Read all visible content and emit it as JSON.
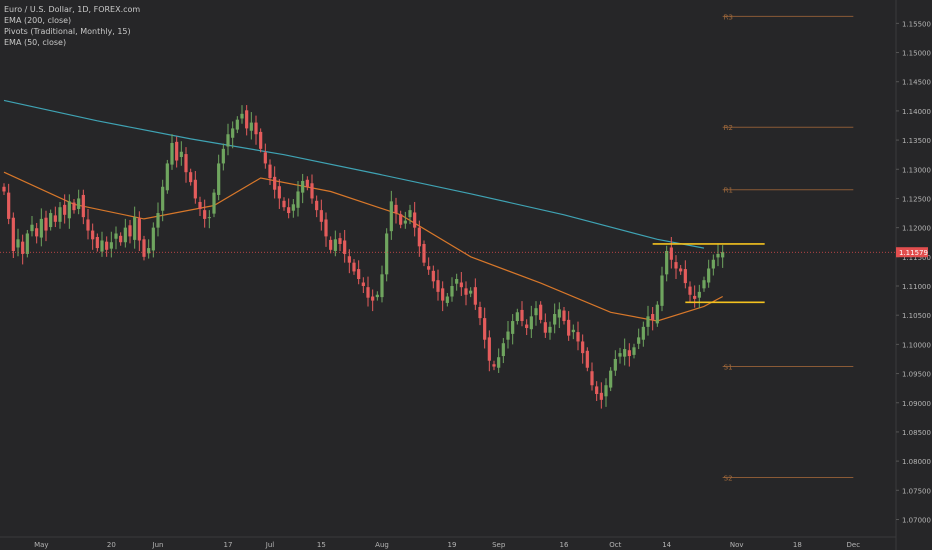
{
  "legend": {
    "symbol": "Euro / U.S. Dollar, 1D, FOREX.com",
    "ema200": "EMA (200, close)",
    "pivots": "Pivots (Traditional, Monthly, 15)",
    "ema50": "EMA (50, close)"
  },
  "colors": {
    "background": "#262628",
    "up": "#6fa55f",
    "down": "#e45c5c",
    "ema200": "#3fa3b4",
    "ema50": "#d7772a",
    "pivot": "#8a5a36",
    "pivot_text": "#a06a3c",
    "annotation": "#f4c21f",
    "price_line": "#e24e4e",
    "axis_text": "#b4b4b4"
  },
  "chart_data": {
    "type": "candlestick",
    "ylim": [
      1.067,
      1.159
    ],
    "y_ticks": [
      "1.15500",
      "1.15000",
      "1.14500",
      "1.14000",
      "1.13500",
      "1.13000",
      "1.12500",
      "1.12000",
      "1.11500",
      "1.11000",
      "1.10500",
      "1.10000",
      "1.09500",
      "1.09000",
      "1.08500",
      "1.08000",
      "1.07500",
      "1.07000"
    ],
    "x_ticks": [
      {
        "label": "May",
        "i": 8
      },
      {
        "label": "20",
        "i": 23
      },
      {
        "label": "Jun",
        "i": 33
      },
      {
        "label": "17",
        "i": 48
      },
      {
        "label": "Jul",
        "i": 57
      },
      {
        "label": "15",
        "i": 68
      },
      {
        "label": "Aug",
        "i": 81
      },
      {
        "label": "19",
        "i": 96
      },
      {
        "label": "Sep",
        "i": 106
      },
      {
        "label": "16",
        "i": 120
      },
      {
        "label": "Oct",
        "i": 131
      },
      {
        "label": "14",
        "i": 142
      },
      {
        "label": "Nov",
        "i": 157
      },
      {
        "label": "18",
        "i": 170
      },
      {
        "label": "Dec",
        "i": 182
      }
    ],
    "x_total": 192,
    "last_price": "1.11579",
    "last_price_value": 1.11579,
    "pivot_levels": [
      {
        "name": "R3",
        "value": 1.1562
      },
      {
        "name": "R2",
        "value": 1.1372
      },
      {
        "name": "R1",
        "value": 1.1265
      },
      {
        "name": "S1",
        "value": 1.0962
      },
      {
        "name": "S2",
        "value": 1.0772
      }
    ],
    "pivot_start_i": 154,
    "pivot_end_i": 182,
    "annotation_lines": [
      {
        "value": 1.1172,
        "i_start": 139,
        "i_end": 163
      },
      {
        "value": 1.1072,
        "i_start": 146,
        "i_end": 163
      }
    ],
    "closes": [
      1.1262,
      1.1215,
      1.116,
      1.118,
      1.1155,
      1.119,
      1.1205,
      1.1185,
      1.1215,
      1.1195,
      1.1225,
      1.121,
      1.1235,
      1.1222,
      1.1245,
      1.123,
      1.125,
      1.1218,
      1.1195,
      1.118,
      1.1165,
      1.1178,
      1.1162,
      1.1175,
      1.119,
      1.1175,
      1.12,
      1.1185,
      1.1218,
      1.1178,
      1.115,
      1.1165,
      1.12,
      1.1225,
      1.127,
      1.131,
      1.1345,
      1.1315,
      1.133,
      1.1295,
      1.1278,
      1.125,
      1.1232,
      1.1215,
      1.1218,
      1.126,
      1.131,
      1.1335,
      1.136,
      1.137,
      1.1385,
      1.1395,
      1.137,
      1.138,
      1.136,
      1.1335,
      1.131,
      1.1285,
      1.1265,
      1.125,
      1.1235,
      1.1225,
      1.124,
      1.1262,
      1.128,
      1.127,
      1.125,
      1.123,
      1.121,
      1.1185,
      1.1162,
      1.118,
      1.1172,
      1.1155,
      1.114,
      1.1125,
      1.1112,
      1.11,
      1.108,
      1.1075,
      1.1085,
      1.112,
      1.119,
      1.1245,
      1.1225,
      1.1205,
      1.1212,
      1.123,
      1.12,
      1.1168,
      1.114,
      1.1128,
      1.1108,
      1.109,
      1.1075,
      1.1082,
      1.11,
      1.1112,
      1.1098,
      1.1085,
      1.1092,
      1.1068,
      1.1045,
      1.1008,
      1.0972,
      1.0962,
      1.0978,
      1.1002,
      1.1022,
      1.104,
      1.1055,
      1.104,
      1.1028,
      1.1048,
      1.1062,
      1.1042,
      1.102,
      1.103,
      1.1052,
      1.106,
      1.104,
      1.1015,
      1.1025,
      1.1005,
      1.0985,
      1.096,
      1.093,
      1.0915,
      1.0905,
      1.093,
      1.0955,
      1.0975,
      1.0985,
      1.0992,
      1.098,
      1.0995,
      1.1012,
      1.103,
      1.1048,
      1.1042,
      1.1068,
      1.1118,
      1.116,
      1.1145,
      1.113,
      1.1125,
      1.1105,
      1.1085,
      1.1078,
      1.109,
      1.111,
      1.113,
      1.1145,
      1.1155,
      1.1158
    ],
    "ema200": [
      {
        "i": 0,
        "v": 1.1418
      },
      {
        "i": 20,
        "v": 1.1383
      },
      {
        "i": 40,
        "v": 1.1352
      },
      {
        "i": 60,
        "v": 1.1325
      },
      {
        "i": 80,
        "v": 1.1292
      },
      {
        "i": 100,
        "v": 1.1258
      },
      {
        "i": 120,
        "v": 1.1222
      },
      {
        "i": 140,
        "v": 1.118
      },
      {
        "i": 150,
        "v": 1.1165
      }
    ],
    "ema50": [
      {
        "i": 0,
        "v": 1.1295
      },
      {
        "i": 15,
        "v": 1.124
      },
      {
        "i": 30,
        "v": 1.1215
      },
      {
        "i": 45,
        "v": 1.1238
      },
      {
        "i": 55,
        "v": 1.1285
      },
      {
        "i": 70,
        "v": 1.1262
      },
      {
        "i": 85,
        "v": 1.1222
      },
      {
        "i": 100,
        "v": 1.115
      },
      {
        "i": 115,
        "v": 1.1105
      },
      {
        "i": 130,
        "v": 1.1055
      },
      {
        "i": 140,
        "v": 1.104
      },
      {
        "i": 150,
        "v": 1.1065
      },
      {
        "i": 154,
        "v": 1.1082
      }
    ]
  }
}
